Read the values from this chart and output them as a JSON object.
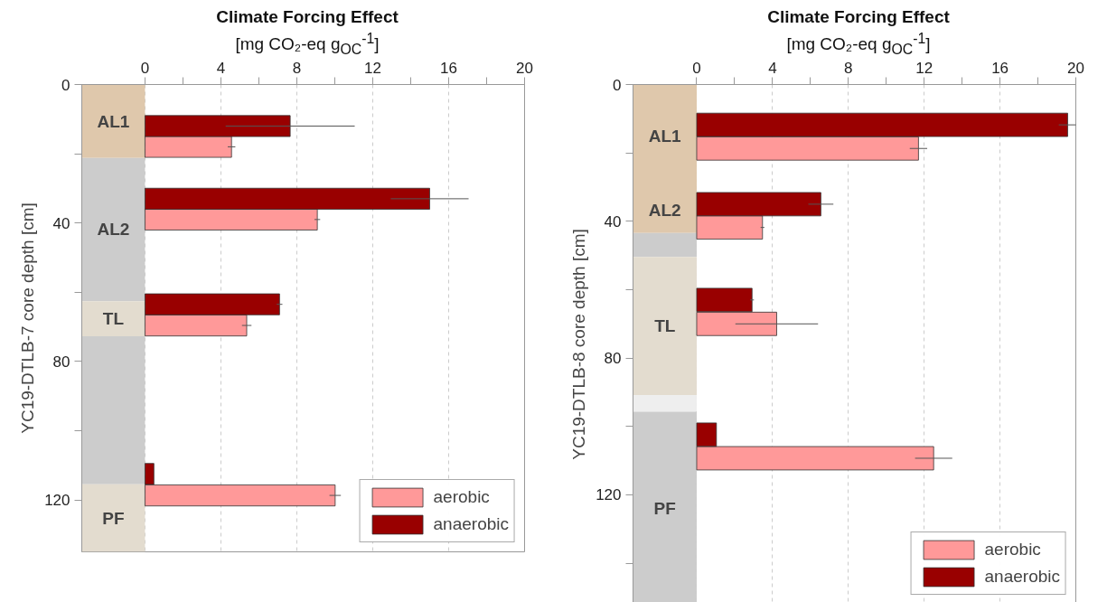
{
  "chart_data": [
    {
      "type": "bar",
      "orientation": "horizontal",
      "title": "Climate Forcing Effect",
      "subtitle": "[mg CO₂-eq g$_{OC}$$^{-1}$]",
      "ylabel": "YC19-DTLB-7 core depth [cm]",
      "xlim": [
        -3.33,
        20
      ],
      "xticks": [
        0,
        {
          "value": 2,
          "label": null
        },
        4,
        {
          "value": 6,
          "label": null
        },
        8,
        {
          "value": 10,
          "label": null
        },
        12,
        {
          "value": 14,
          "label": null
        },
        16,
        {
          "value": 18,
          "label": null
        },
        20
      ],
      "ylim": [
        135,
        0
      ],
      "yticks": [
        0,
        {
          "value": 20,
          "label": null
        },
        40,
        {
          "value": 60,
          "label": null
        },
        80,
        {
          "value": 100,
          "label": null
        },
        120
      ],
      "grid": "x",
      "legend": "bottom right",
      "bands": [
        {
          "axis": "y",
          "from": 0,
          "to": 21.2,
          "color": "#dfc8ac",
          "label": "AL1"
        },
        {
          "axis": "y",
          "from": 21.2,
          "to": 62.6,
          "color": "#cccccc",
          "label": "AL2"
        },
        {
          "axis": "y",
          "from": 62.6,
          "to": 72.7,
          "color": "#e3dccf",
          "label": "TL"
        },
        {
          "axis": "y",
          "from": 72.7,
          "to": 115.5,
          "color": "#cccccc"
        },
        {
          "axis": "y",
          "from": 115.5,
          "to": 135,
          "color": "#e3dccf",
          "label": "PF"
        }
      ],
      "series": [
        {
          "name": "aerobic",
          "color": "#ff9999",
          "x": [
            18,
            39,
            69.6,
            118.7
          ],
          "values": [
            4.56,
            9.08,
            5.36,
            10.02
          ],
          "errors": [
            0.2,
            0.15,
            0.25,
            0.3
          ]
        },
        {
          "name": "anaerobic",
          "color": "#990000",
          "x": [
            12,
            33,
            63.5,
            112.5
          ],
          "values": [
            7.65,
            15.0,
            7.09,
            0.47
          ],
          "errors": [
            3.4,
            2.05,
            0.15,
            null
          ]
        }
      ]
    },
    {
      "type": "bar",
      "orientation": "horizontal",
      "title": "Climate Forcing Effect",
      "subtitle": "[mg CO₂-eq g$_{OC}$$^{-1}$]",
      "ylabel": "YC19-DTLB-8 core depth [cm]",
      "xlim": [
        -3.36,
        20
      ],
      "xticks": [
        0,
        {
          "value": 2,
          "label": null
        },
        4,
        {
          "value": 6,
          "label": null
        },
        8,
        {
          "value": 10,
          "label": null
        },
        12,
        {
          "value": 14,
          "label": null
        },
        16,
        {
          "value": 18,
          "label": null
        },
        20
      ],
      "ylim": [
        152,
        0
      ],
      "yticks": [
        0,
        {
          "value": 20,
          "label": null
        },
        40,
        {
          "value": 60,
          "label": null
        },
        80,
        {
          "value": 100,
          "label": null
        },
        120,
        {
          "value": 140,
          "label": null
        }
      ],
      "grid": "x",
      "legend": "bottom right",
      "bands": [
        {
          "axis": "y",
          "from": 0,
          "to": 30,
          "color": "#dfc8ac",
          "label": "AL1"
        },
        {
          "axis": "y",
          "from": 30,
          "to": 43.4,
          "color": "#dfc8ac",
          "label": "AL2"
        },
        {
          "axis": "y",
          "from": 43.4,
          "to": 50.4,
          "color": "#cccccc"
        },
        {
          "axis": "y",
          "from": 50.4,
          "to": 90.8,
          "color": "#e3dccf",
          "label": "TL"
        },
        {
          "axis": "y",
          "from": 90.8,
          "to": 95.7,
          "color": "#eeeeee"
        },
        {
          "axis": "y",
          "from": 95.7,
          "to": 152,
          "color": "#cccccc",
          "label": "PF"
        }
      ],
      "series": [
        {
          "name": "aerobic",
          "color": "#ff9999",
          "x": [
            18.7,
            41.8,
            70,
            109.3
          ],
          "values": [
            11.7,
            3.47,
            4.22,
            12.5
          ],
          "errors": [
            0.46,
            0.1,
            2.18,
            0.98
          ]
        },
        {
          "name": "anaerobic",
          "color": "#990000",
          "x": [
            11.8,
            35,
            63,
            102.4
          ],
          "values": [
            19.57,
            6.55,
            2.92,
            1.04
          ],
          "errors": [
            0.47,
            0.66,
            0.1,
            null
          ]
        }
      ]
    }
  ]
}
